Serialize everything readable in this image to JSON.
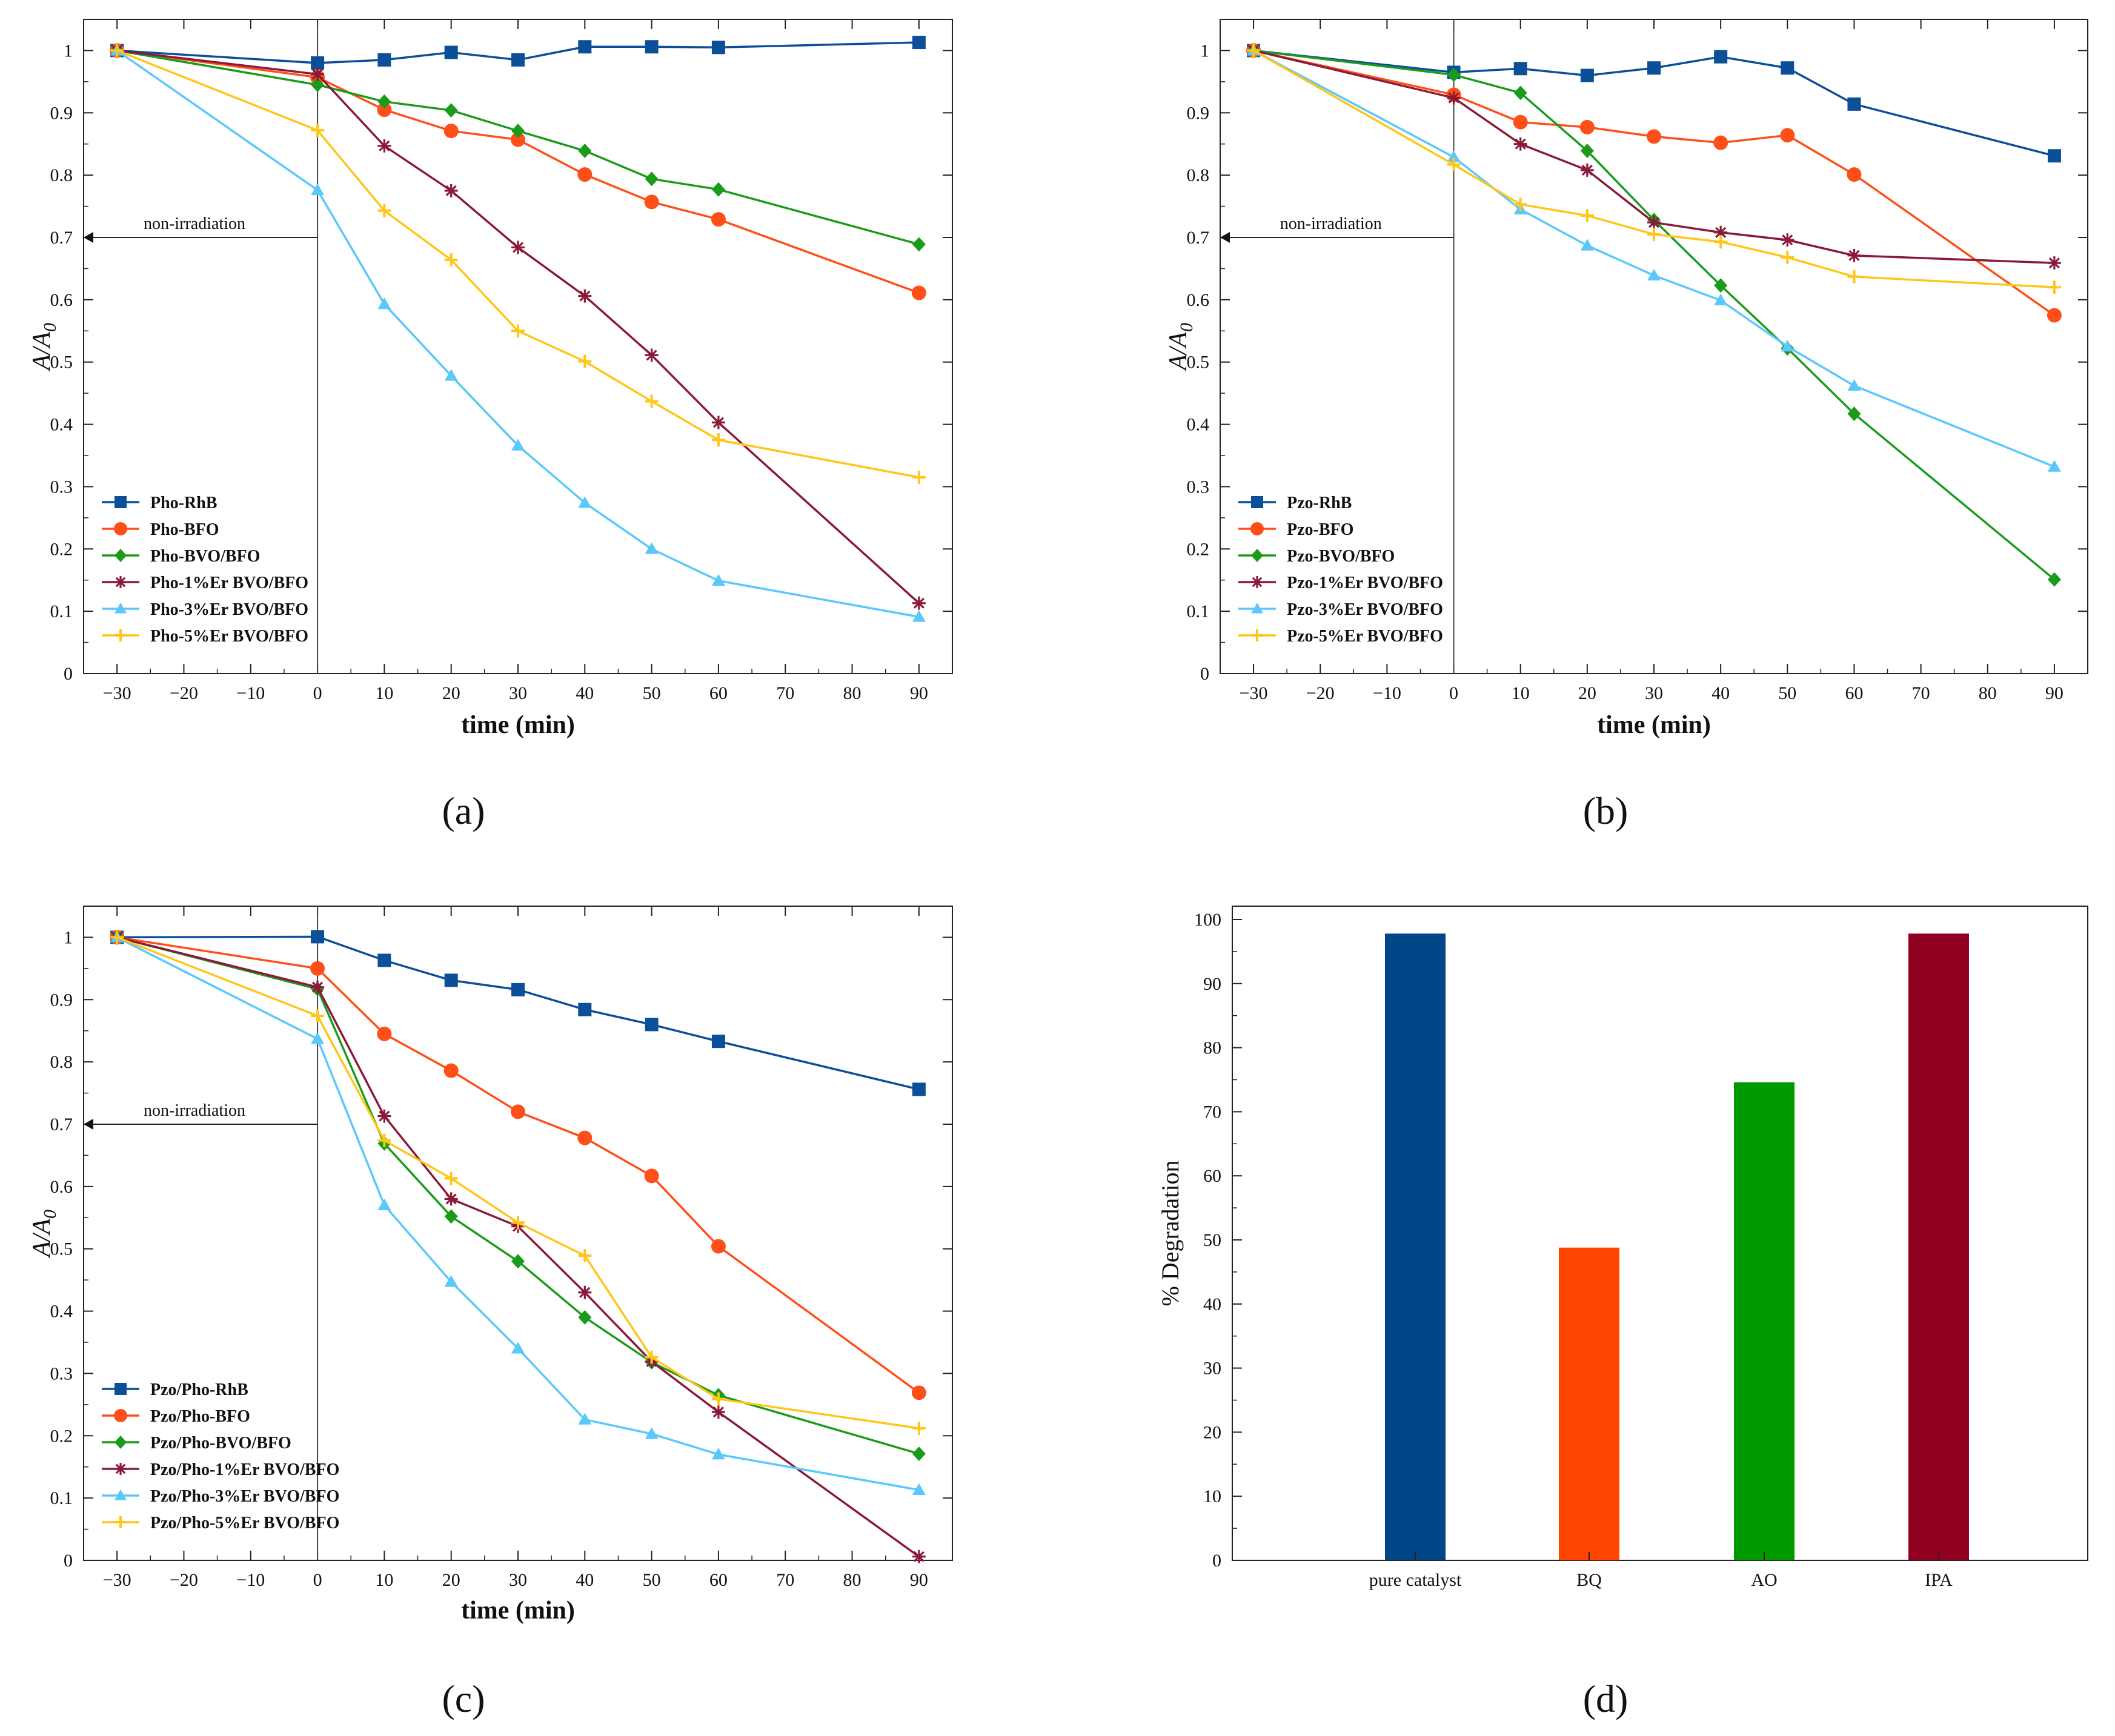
{
  "chart_data": [
    {
      "type": "line",
      "panel_label": "(a)",
      "xlabel": "time (min)",
      "ylabel": "A/A0",
      "ylabel_main": "A/A",
      "ylabel_sub": "0",
      "xlim": [
        -35,
        95
      ],
      "ylim": [
        0,
        1.05
      ],
      "xticks": [
        -30,
        -20,
        -10,
        0,
        10,
        20,
        30,
        40,
        50,
        60,
        70,
        80,
        90
      ],
      "xtick_labels": [
        "−30",
        "−20",
        "−10",
        "0",
        "10",
        "20",
        "30",
        "40",
        "50",
        "60",
        "70",
        "80",
        "90"
      ],
      "yticks": [
        0,
        0.1,
        0.2,
        0.3,
        0.4,
        0.5,
        0.6,
        0.7,
        0.8,
        0.9,
        1
      ],
      "ytick_labels": [
        "0",
        "0.1",
        "0.2",
        "0.3",
        "0.4",
        "0.5",
        "0.6",
        "0.7",
        "0.8",
        "0.9",
        "1"
      ],
      "annotation": {
        "text": "non-irradiation",
        "x_from": 0,
        "x_to": -35,
        "y": 0.7
      },
      "legend": "lower-left",
      "x": [
        -30,
        0,
        10,
        20,
        30,
        40,
        50,
        60,
        90
      ],
      "series": [
        {
          "name": "Pho-RhB",
          "color": "#0a4f97",
          "marker": "square",
          "values": [
            1.0,
            0.98,
            0.985,
            0.997,
            0.985,
            1.006,
            1.006,
            1.005,
            1.013
          ]
        },
        {
          "name": "Pho-BFO",
          "color": "#ff4f19",
          "marker": "circle",
          "values": [
            1.0,
            0.957,
            0.905,
            0.871,
            0.857,
            0.801,
            0.757,
            0.729,
            0.611
          ]
        },
        {
          "name": "Pho-BVO/BFO",
          "color": "#1a9c1a",
          "marker": "diamond",
          "values": [
            1.0,
            0.945,
            0.918,
            0.904,
            0.871,
            0.839,
            0.794,
            0.777,
            0.689
          ]
        },
        {
          "name": "Pho-1%Er BVO/BFO",
          "color": "#8b1a3a",
          "marker": "star",
          "values": [
            1.0,
            0.962,
            0.847,
            0.775,
            0.684,
            0.606,
            0.511,
            0.403,
            0.113
          ]
        },
        {
          "name": "Pho-3%Er BVO/BFO",
          "color": "#5ac8fa",
          "marker": "triangle",
          "values": [
            1.0,
            0.776,
            0.593,
            0.478,
            0.366,
            0.274,
            0.2,
            0.149,
            0.091
          ]
        },
        {
          "name": "Pho-5%Er BVO/BFO",
          "color": "#ffc61a",
          "marker": "plus",
          "values": [
            1.0,
            0.872,
            0.743,
            0.664,
            0.55,
            0.501,
            0.437,
            0.375,
            0.315
          ]
        }
      ]
    },
    {
      "type": "line",
      "panel_label": "(b)",
      "xlabel": "time (min)",
      "ylabel": "A/A0",
      "ylabel_main": "A/A",
      "ylabel_sub": "0",
      "xlim": [
        -35,
        95
      ],
      "ylim": [
        0,
        1.05
      ],
      "xticks": [
        -30,
        -20,
        -10,
        0,
        10,
        20,
        30,
        40,
        50,
        60,
        70,
        80,
        90
      ],
      "xtick_labels": [
        "−30",
        "−20",
        "−10",
        "0",
        "10",
        "20",
        "30",
        "40",
        "50",
        "60",
        "70",
        "80",
        "90"
      ],
      "yticks": [
        0,
        0.1,
        0.2,
        0.3,
        0.4,
        0.5,
        0.6,
        0.7,
        0.8,
        0.9,
        1
      ],
      "ytick_labels": [
        "0",
        "0.1",
        "0.2",
        "0.3",
        "0.4",
        "0.5",
        "0.6",
        "0.7",
        "0.8",
        "0.9",
        "1"
      ],
      "annotation": {
        "text": "non-irradiation",
        "x_from": 0,
        "x_to": -35,
        "y": 0.7
      },
      "legend": "lower-left",
      "x": [
        -30,
        0,
        10,
        20,
        30,
        40,
        50,
        60,
        90
      ],
      "series": [
        {
          "name": "Pzo-RhB",
          "color": "#0a4f97",
          "marker": "square",
          "values": [
            1.0,
            0.965,
            0.971,
            0.96,
            0.972,
            0.99,
            0.972,
            0.914,
            0.831
          ]
        },
        {
          "name": "Pzo-BFO",
          "color": "#ff4f19",
          "marker": "circle",
          "values": [
            1.0,
            0.929,
            0.885,
            0.877,
            0.862,
            0.852,
            0.864,
            0.801,
            0.575
          ]
        },
        {
          "name": "Pzo-BVO/BFO",
          "color": "#1a9c1a",
          "marker": "diamond",
          "values": [
            1.0,
            0.961,
            0.932,
            0.839,
            0.728,
            0.623,
            0.522,
            0.417,
            0.151
          ]
        },
        {
          "name": "Pzo-1%Er BVO/BFO",
          "color": "#8b1a3a",
          "marker": "star",
          "values": [
            1.0,
            0.924,
            0.85,
            0.808,
            0.724,
            0.708,
            0.696,
            0.671,
            0.659
          ]
        },
        {
          "name": "Pzo-3%Er BVO/BFO",
          "color": "#5ac8fa",
          "marker": "triangle",
          "values": [
            1.0,
            0.829,
            0.745,
            0.687,
            0.639,
            0.599,
            0.525,
            0.462,
            0.332
          ]
        },
        {
          "name": "Pzo-5%Er BVO/BFO",
          "color": "#ffc61a",
          "marker": "plus",
          "values": [
            1.0,
            0.817,
            0.753,
            0.735,
            0.705,
            0.693,
            0.668,
            0.637,
            0.62
          ]
        }
      ]
    },
    {
      "type": "line",
      "panel_label": "(c)",
      "xlabel": "time (min)",
      "ylabel": "A/A0",
      "ylabel_main": "A/A",
      "ylabel_sub": "0",
      "xlim": [
        -35,
        95
      ],
      "ylim": [
        0,
        1.05
      ],
      "xticks": [
        -30,
        -20,
        -10,
        0,
        10,
        20,
        30,
        40,
        50,
        60,
        70,
        80,
        90
      ],
      "xtick_labels": [
        "−30",
        "−20",
        "−10",
        "0",
        "10",
        "20",
        "30",
        "40",
        "50",
        "60",
        "70",
        "80",
        "90"
      ],
      "yticks": [
        0,
        0.1,
        0.2,
        0.3,
        0.4,
        0.5,
        0.6,
        0.7,
        0.8,
        0.9,
        1
      ],
      "ytick_labels": [
        "0",
        "0.1",
        "0.2",
        "0.3",
        "0.4",
        "0.5",
        "0.6",
        "0.7",
        "0.8",
        "0.9",
        "1"
      ],
      "annotation": {
        "text": "non-irradiation",
        "x_from": 0,
        "x_to": -35,
        "y": 0.7
      },
      "legend": "lower-left",
      "x": [
        -30,
        0,
        10,
        20,
        30,
        40,
        50,
        60,
        90
      ],
      "series": [
        {
          "name": "Pzo/Pho-RhB",
          "color": "#0a4f97",
          "marker": "square",
          "values": [
            1.0,
            1.001,
            0.963,
            0.931,
            0.916,
            0.884,
            0.86,
            0.833,
            0.756
          ]
        },
        {
          "name": "Pzo/Pho-BFO",
          "color": "#ff4f19",
          "marker": "circle",
          "values": [
            1.0,
            0.95,
            0.845,
            0.786,
            0.72,
            0.678,
            0.617,
            0.504,
            0.269
          ]
        },
        {
          "name": "Pzo/Pho-BVO/BFO",
          "color": "#1a9c1a",
          "marker": "diamond",
          "values": [
            1.0,
            0.917,
            0.669,
            0.552,
            0.48,
            0.39,
            0.318,
            0.265,
            0.171
          ]
        },
        {
          "name": "Pzo/Pho-1%Er BVO/BFO",
          "color": "#8b1a3a",
          "marker": "star",
          "values": [
            1.0,
            0.92,
            0.713,
            0.58,
            0.536,
            0.43,
            0.319,
            0.238,
            0.006
          ]
        },
        {
          "name": "Pzo/Pho-3%Er BVO/BFO",
          "color": "#5ac8fa",
          "marker": "triangle",
          "values": [
            1.0,
            0.837,
            0.57,
            0.447,
            0.34,
            0.226,
            0.203,
            0.17,
            0.113
          ]
        },
        {
          "name": "Pzo/Pho-5%Er BVO/BFO",
          "color": "#ffc61a",
          "marker": "plus",
          "values": [
            1.0,
            0.874,
            0.674,
            0.613,
            0.542,
            0.489,
            0.326,
            0.259,
            0.212
          ]
        }
      ]
    },
    {
      "type": "bar",
      "panel_label": "(d)",
      "xlabel": "",
      "ylabel": "% Degradation",
      "ylim": [
        0,
        100
      ],
      "yticks": [
        0,
        10,
        20,
        30,
        40,
        50,
        60,
        70,
        80,
        90,
        100
      ],
      "ytick_labels": [
        "0",
        "10",
        "20",
        "30",
        "40",
        "50",
        "60",
        "70",
        "80",
        "90",
        "100"
      ],
      "categories": [
        "pure catalyst",
        "BQ",
        "AO",
        "IPA"
      ],
      "values": [
        97.8,
        48.8,
        74.6,
        97.8
      ],
      "colors": [
        "#004586",
        "#ff4500",
        "#009900",
        "#900020"
      ]
    }
  ]
}
